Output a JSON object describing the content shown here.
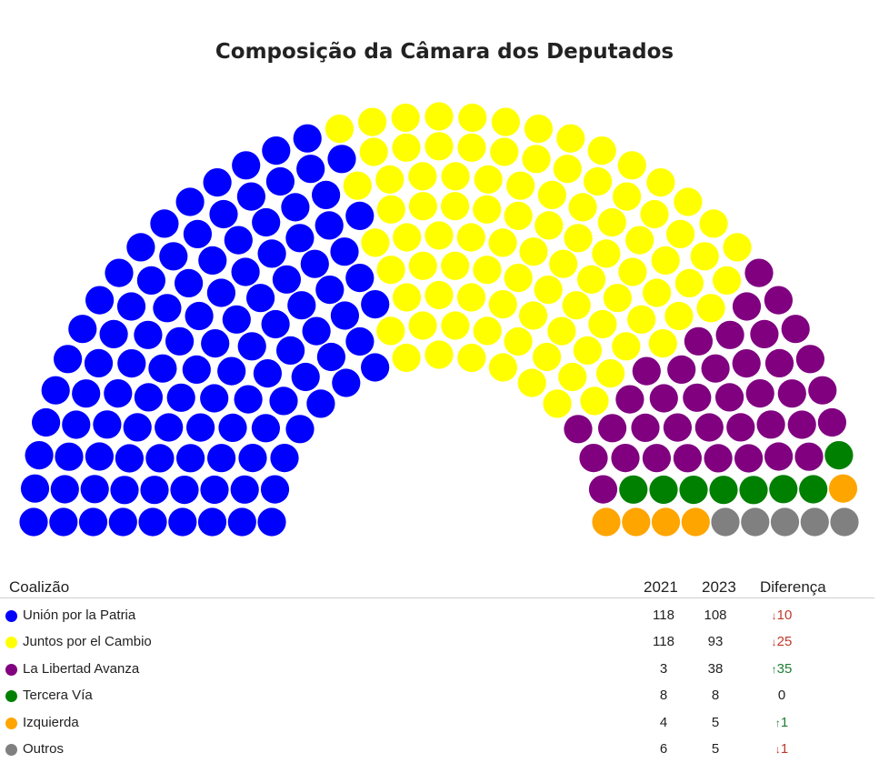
{
  "chart_data": {
    "type": "parliament",
    "title": "Composição da Câmara dos Deputados",
    "total_seats": 257,
    "columns": {
      "coalition": "Coalizão",
      "y2021": "2021",
      "y2023": "2023",
      "diff": "Diferença"
    },
    "parties": [
      {
        "name": "Unión por la Patria",
        "color": "#0000ff",
        "seats_2021": 118,
        "seats_2023": 108,
        "diff": "10",
        "trend": "down"
      },
      {
        "name": "Juntos por el Cambio",
        "color": "#ffff00",
        "seats_2021": 118,
        "seats_2023": 93,
        "diff": "25",
        "trend": "down"
      },
      {
        "name": "La Libertad Avanza",
        "color": "#800080",
        "seats_2021": 3,
        "seats_2023": 38,
        "diff": "35",
        "trend": "up"
      },
      {
        "name": "Tercera Vía",
        "color": "#008000",
        "seats_2021": 8,
        "seats_2023": 8,
        "diff": "0",
        "trend": "flat"
      },
      {
        "name": "Izquierda",
        "color": "#ffa500",
        "seats_2021": 4,
        "seats_2023": 5,
        "diff": "1",
        "trend": "up"
      },
      {
        "name": "Outros",
        "color": "#808080",
        "seats_2021": 6,
        "seats_2023": 5,
        "diff": "1",
        "trend": "down"
      }
    ]
  }
}
